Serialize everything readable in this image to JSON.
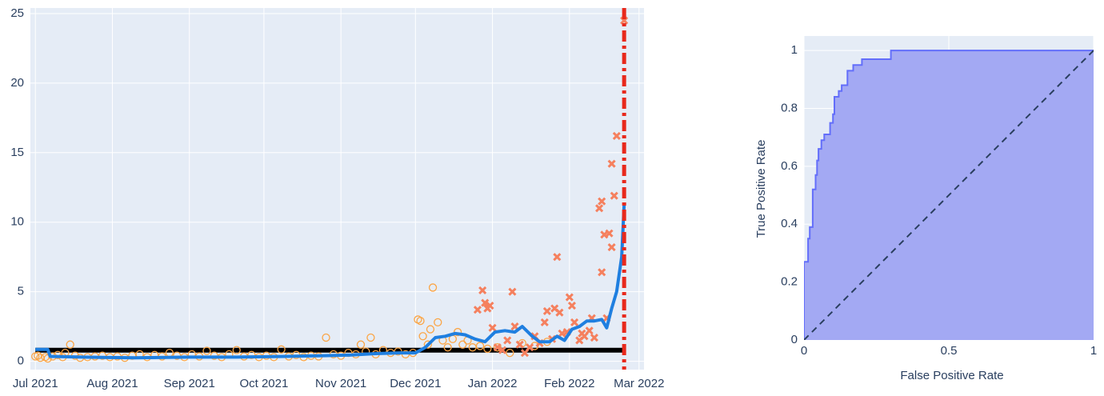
{
  "chart_data": [
    {
      "type": "line",
      "background": "#e5ecf6",
      "grid": true,
      "xaxis_type": "date",
      "xlim": [
        "2021-06-29",
        "2022-03-03"
      ],
      "ylim": [
        -0.6,
        25.4
      ],
      "xticks": [
        {
          "value": "2021-07-01",
          "label": "Jul 2021"
        },
        {
          "value": "2021-08-01",
          "label": "Aug 2021"
        },
        {
          "value": "2021-09-01",
          "label": "Sep 2021"
        },
        {
          "value": "2021-10-01",
          "label": "Oct 2021"
        },
        {
          "value": "2021-11-01",
          "label": "Nov 2021"
        },
        {
          "value": "2021-12-01",
          "label": "Dec 2021"
        },
        {
          "value": "2022-01-01",
          "label": "Jan 2022"
        },
        {
          "value": "2022-02-01",
          "label": "Feb 2022"
        },
        {
          "value": "2022-03-01",
          "label": "Mar 2022"
        }
      ],
      "yticks": [
        0,
        5,
        10,
        15,
        20,
        25
      ],
      "series": [
        {
          "mode": "lines",
          "color": "#000000",
          "width": 6,
          "x": [
            "2021-07-01",
            "2022-02-23"
          ],
          "y": [
            0.8,
            0.8
          ]
        },
        {
          "mode": "markers",
          "symbol": "circle-open",
          "color": "#fba545",
          "x": [
            "2021-07-01",
            "2021-07-02",
            "2021-07-03",
            "2021-07-05",
            "2021-07-06",
            "2021-07-08",
            "2021-07-10",
            "2021-07-12",
            "2021-07-13",
            "2021-07-15",
            "2021-07-17",
            "2021-07-19",
            "2021-07-22",
            "2021-07-25",
            "2021-07-28",
            "2021-07-31",
            "2021-08-03",
            "2021-08-06",
            "2021-08-09",
            "2021-08-12",
            "2021-08-15",
            "2021-08-18",
            "2021-08-21",
            "2021-08-24",
            "2021-08-27",
            "2021-08-30",
            "2021-09-02",
            "2021-09-05",
            "2021-09-08",
            "2021-09-11",
            "2021-09-14",
            "2021-09-17",
            "2021-09-20",
            "2021-09-23",
            "2021-09-26",
            "2021-09-29",
            "2021-10-02",
            "2021-10-05",
            "2021-10-08",
            "2021-10-11",
            "2021-10-14",
            "2021-10-17",
            "2021-10-20",
            "2021-10-23",
            "2021-10-26",
            "2021-10-29",
            "2021-11-01",
            "2021-11-04",
            "2021-11-07",
            "2021-11-09",
            "2021-11-11",
            "2021-11-13",
            "2021-11-15",
            "2021-11-18",
            "2021-11-21",
            "2021-11-24",
            "2021-11-27",
            "2021-11-30",
            "2021-12-02",
            "2021-12-03",
            "2021-12-04",
            "2021-12-06",
            "2021-12-07",
            "2021-12-08",
            "2021-12-10",
            "2021-12-12",
            "2021-12-14",
            "2021-12-16",
            "2021-12-18",
            "2021-12-20",
            "2021-12-22",
            "2021-12-24",
            "2021-12-27",
            "2021-12-30",
            "2022-01-03",
            "2022-01-08",
            "2022-01-13",
            "2022-01-18",
            "2022-01-23"
          ],
          "y": [
            0.35,
            0.4,
            0.25,
            0.3,
            0.2,
            0.35,
            0.45,
            0.3,
            0.6,
            1.2,
            0.4,
            0.25,
            0.3,
            0.35,
            0.4,
            0.3,
            0.35,
            0.25,
            0.4,
            0.5,
            0.3,
            0.45,
            0.35,
            0.6,
            0.4,
            0.3,
            0.5,
            0.35,
            0.75,
            0.4,
            0.3,
            0.5,
            0.8,
            0.35,
            0.45,
            0.3,
            0.4,
            0.3,
            0.85,
            0.35,
            0.45,
            0.3,
            0.4,
            0.35,
            1.7,
            0.5,
            0.4,
            0.6,
            0.5,
            1.2,
            0.7,
            1.7,
            0.5,
            0.8,
            0.6,
            0.7,
            0.5,
            0.6,
            3.0,
            2.9,
            1.8,
            1.2,
            2.3,
            5.3,
            2.8,
            1.5,
            1.0,
            1.6,
            2.1,
            1.2,
            1.5,
            1.0,
            1.1,
            0.9,
            1.0,
            0.6,
            1.3,
            1.1,
            1.4
          ]
        },
        {
          "mode": "markers",
          "symbol": "x",
          "color": "#f5805e",
          "x": [
            "2021-12-26",
            "2021-12-28",
            "2021-12-29",
            "2021-12-30",
            "2021-12-31",
            "2022-01-01",
            "2022-01-03",
            "2022-01-05",
            "2022-01-07",
            "2022-01-09",
            "2022-01-10",
            "2022-01-12",
            "2022-01-14",
            "2022-01-16",
            "2022-01-18",
            "2022-01-20",
            "2022-01-22",
            "2022-01-23",
            "2022-01-25",
            "2022-01-26",
            "2022-01-27",
            "2022-01-28",
            "2022-01-29",
            "2022-01-31",
            "2022-02-01",
            "2022-02-02",
            "2022-02-03",
            "2022-02-05",
            "2022-02-06",
            "2022-02-07",
            "2022-02-09",
            "2022-02-10",
            "2022-02-11",
            "2022-02-13",
            "2022-02-14",
            "2022-02-14",
            "2022-02-15",
            "2022-02-16",
            "2022-02-17",
            "2022-02-18",
            "2022-02-18",
            "2022-02-19",
            "2022-02-20",
            "2022-02-23"
          ],
          "y": [
            3.7,
            5.1,
            4.2,
            3.8,
            4.0,
            2.4,
            1.0,
            0.8,
            1.5,
            5.0,
            2.5,
            1.2,
            0.6,
            1.0,
            1.8,
            1.3,
            2.8,
            3.6,
            1.6,
            3.8,
            7.5,
            3.5,
            2.0,
            2.1,
            4.6,
            4.0,
            2.8,
            1.5,
            2.0,
            1.8,
            2.2,
            3.1,
            1.7,
            11.0,
            11.5,
            6.4,
            9.1,
            3.1,
            9.2,
            8.2,
            14.2,
            11.9,
            16.2,
            24.5
          ]
        },
        {
          "mode": "lines",
          "color": "#1f7fe0",
          "width": 4,
          "x": [
            "2021-07-01",
            "2021-07-06",
            "2021-07-07",
            "2021-07-20",
            "2021-08-10",
            "2021-09-01",
            "2021-09-20",
            "2021-10-10",
            "2021-10-25",
            "2021-11-05",
            "2021-11-15",
            "2021-11-25",
            "2021-12-01",
            "2021-12-05",
            "2021-12-09",
            "2021-12-13",
            "2021-12-17",
            "2021-12-21",
            "2021-12-25",
            "2021-12-29",
            "2022-01-02",
            "2022-01-06",
            "2022-01-10",
            "2022-01-13",
            "2022-01-17",
            "2022-01-20",
            "2022-01-24",
            "2022-01-27",
            "2022-01-30",
            "2022-02-02",
            "2022-02-05",
            "2022-02-08",
            "2022-02-11",
            "2022-02-14",
            "2022-02-16",
            "2022-02-18",
            "2022-02-20",
            "2022-02-22",
            "2022-02-23"
          ],
          "y": [
            0.85,
            0.85,
            0.35,
            0.3,
            0.25,
            0.3,
            0.3,
            0.35,
            0.4,
            0.45,
            0.55,
            0.6,
            0.6,
            1.0,
            1.7,
            1.8,
            2.0,
            1.9,
            1.6,
            1.4,
            2.1,
            2.2,
            2.1,
            2.5,
            1.8,
            1.4,
            1.4,
            1.8,
            1.5,
            2.3,
            2.5,
            2.9,
            2.9,
            3.0,
            2.4,
            3.8,
            5.0,
            7.5,
            11.3
          ]
        }
      ],
      "vlines": [
        {
          "x": "2022-02-23",
          "color": "#e8291c",
          "dash": "dashdot"
        }
      ]
    },
    {
      "type": "area",
      "background": "#e5ecf6",
      "grid": true,
      "x_label": "False Positive Rate",
      "y_label": "True Positive Rate",
      "xlim": [
        0,
        1
      ],
      "ylim": [
        0,
        1.05
      ],
      "xticks": [
        0,
        0.5,
        1
      ],
      "yticks": [
        0,
        0.2,
        0.4,
        0.6,
        0.8,
        1
      ],
      "series": [
        {
          "color": "#636efa",
          "fill": "#a3a9f3",
          "x": [
            0,
            0,
            0.014,
            0.014,
            0.02,
            0.02,
            0.03,
            0.03,
            0.04,
            0.04,
            0.045,
            0.045,
            0.05,
            0.05,
            0.06,
            0.06,
            0.07,
            0.07,
            0.09,
            0.09,
            0.1,
            0.1,
            0.105,
            0.105,
            0.12,
            0.12,
            0.13,
            0.13,
            0.15,
            0.15,
            0.17,
            0.17,
            0.2,
            0.2,
            0.3,
            0.3,
            1
          ],
          "y": [
            0,
            0.27,
            0.27,
            0.35,
            0.35,
            0.39,
            0.39,
            0.52,
            0.52,
            0.57,
            0.57,
            0.62,
            0.62,
            0.66,
            0.66,
            0.69,
            0.69,
            0.71,
            0.71,
            0.75,
            0.75,
            0.78,
            0.78,
            0.84,
            0.84,
            0.86,
            0.86,
            0.88,
            0.88,
            0.93,
            0.93,
            0.95,
            0.95,
            0.97,
            0.97,
            1,
            1
          ]
        }
      ],
      "reference_line": {
        "x": [
          0,
          1
        ],
        "y": [
          0,
          1
        ],
        "color": "#2a3f5f",
        "dash": "dash"
      }
    }
  ]
}
